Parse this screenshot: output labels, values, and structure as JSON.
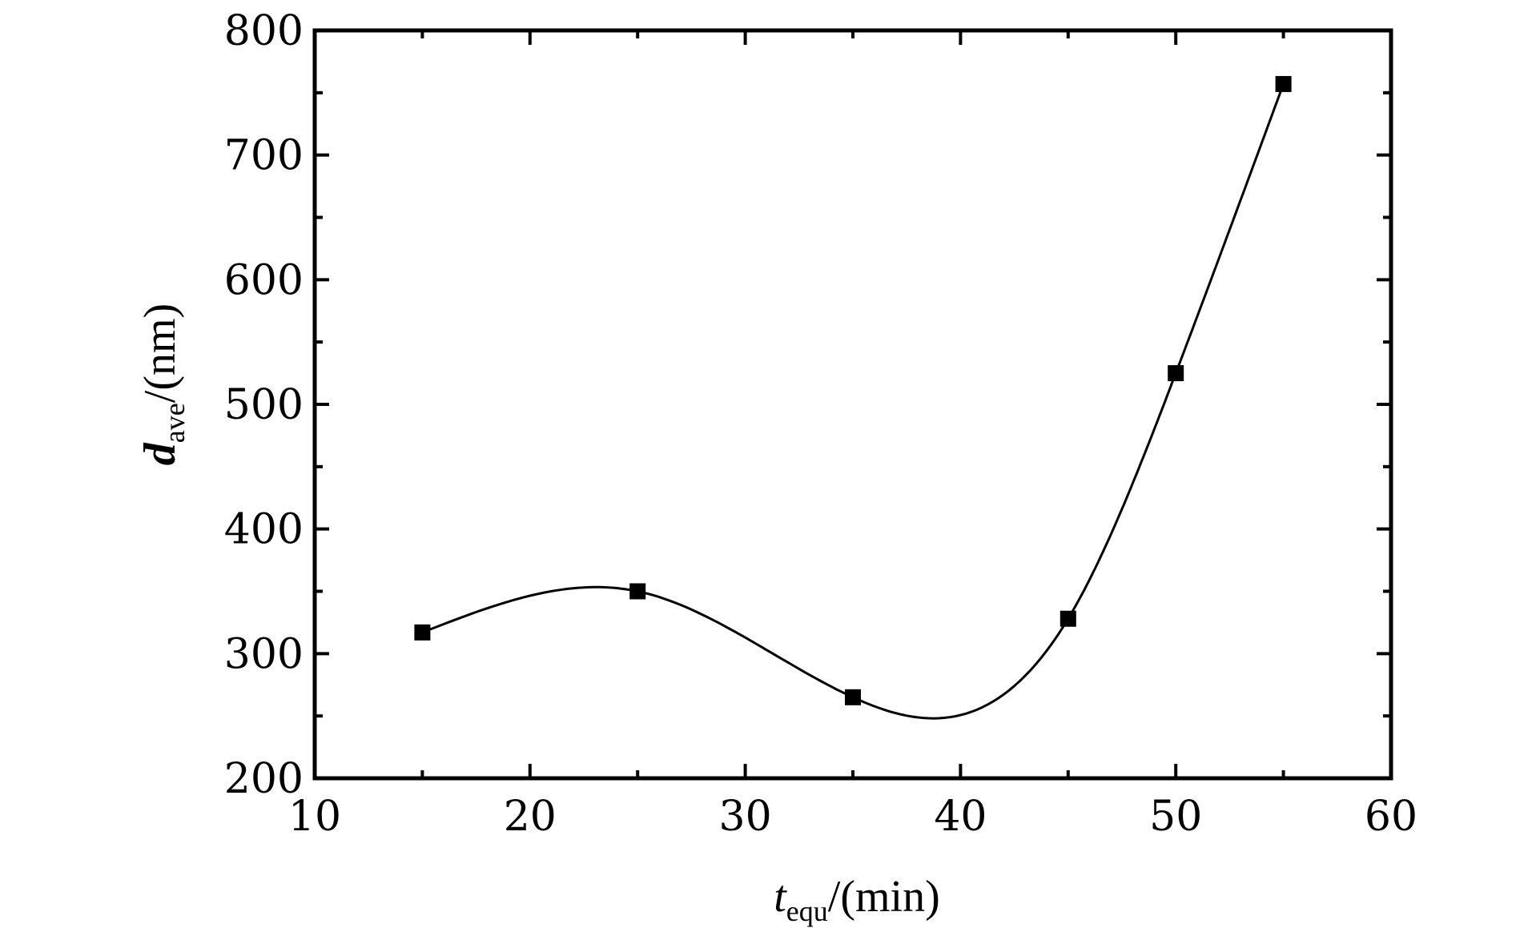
{
  "chart_data": {
    "type": "scatter",
    "xlabel": {
      "symbol": "t",
      "subscript": "equ",
      "unit": "/(min)"
    },
    "ylabel": {
      "symbol": "d",
      "subscript": "ave",
      "unit": "/(nm)"
    },
    "xlim": [
      10,
      60
    ],
    "ylim": [
      200,
      800
    ],
    "x_ticks": [
      10,
      20,
      30,
      40,
      50,
      60
    ],
    "y_ticks": [
      200,
      300,
      400,
      500,
      600,
      700,
      800
    ],
    "x_tick_labels": [
      "10",
      "20",
      "30",
      "40",
      "50",
      "60"
    ],
    "y_tick_labels": [
      "200",
      "300",
      "400",
      "500",
      "600",
      "700",
      "800"
    ],
    "grid": false,
    "marker": "square",
    "fit_line": "smooth spline",
    "series": [
      {
        "x": [
          15,
          25,
          35,
          45,
          50,
          55
        ],
        "y": [
          317,
          350,
          265,
          328,
          525,
          757
        ]
      }
    ],
    "colors": {
      "marker": "#000000",
      "line": "#000000",
      "axis": "#000000"
    }
  }
}
